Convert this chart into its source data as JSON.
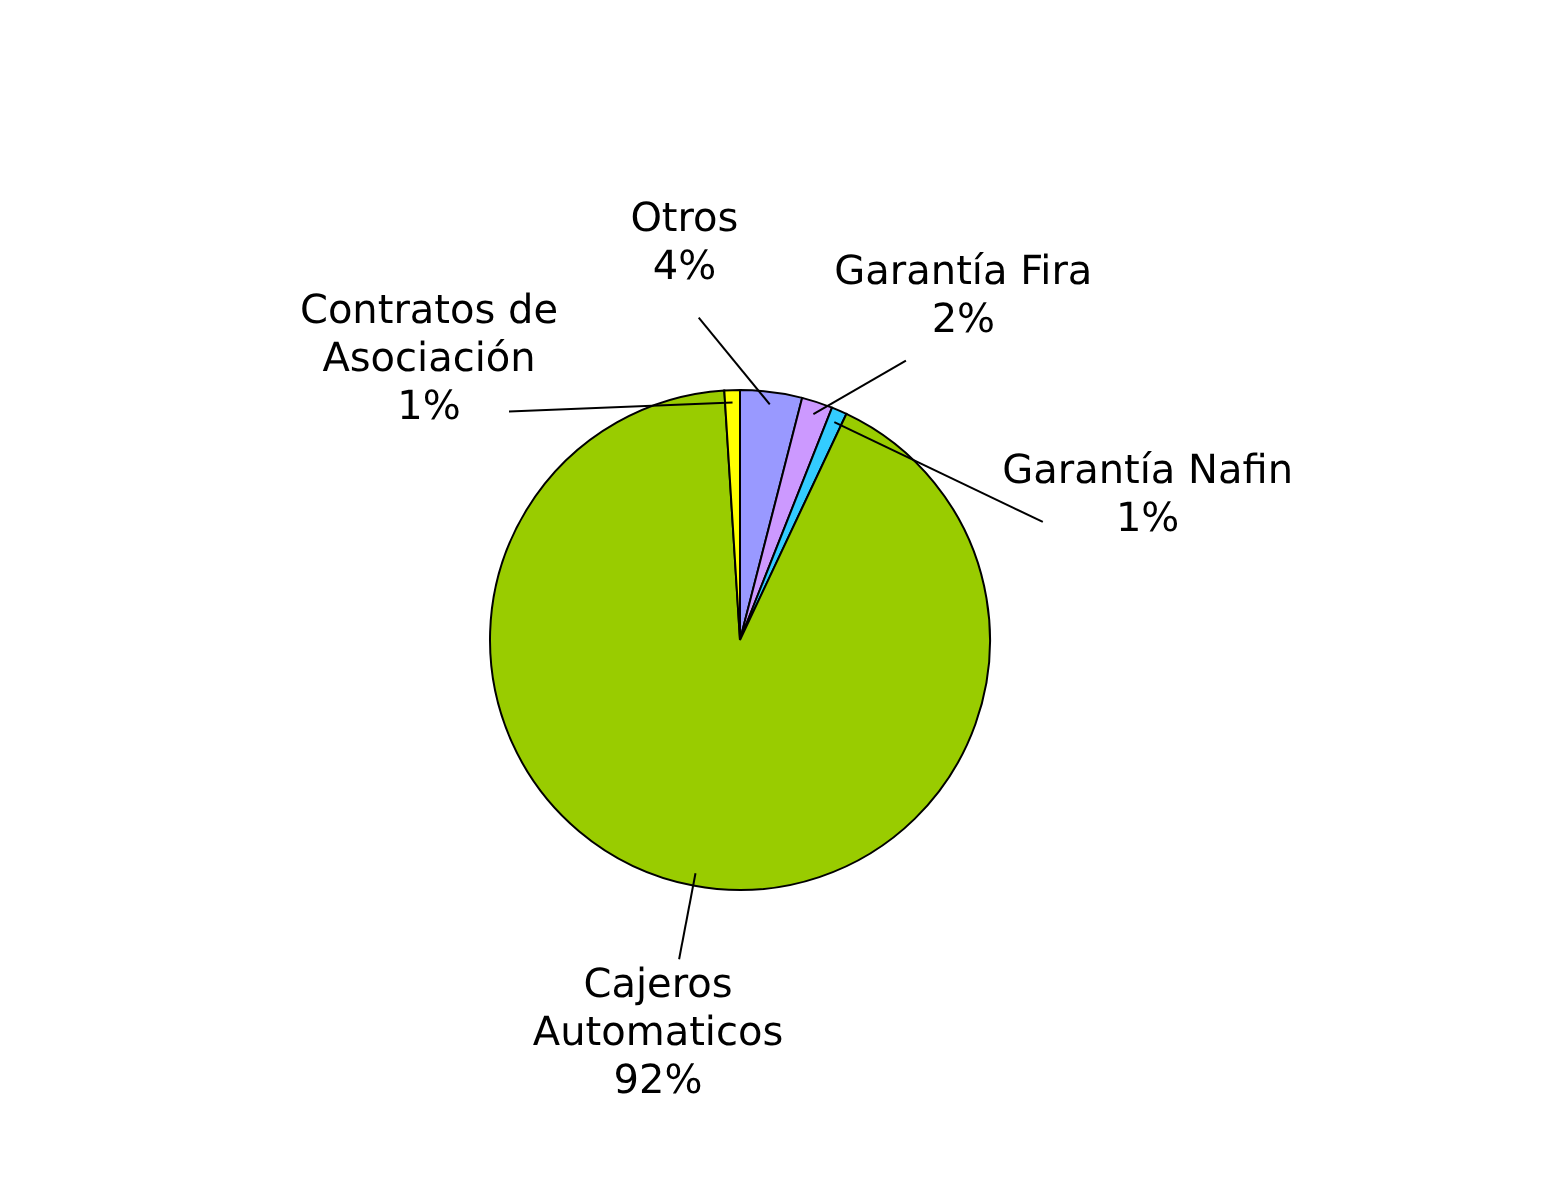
{
  "chart_data": {
    "type": "pie",
    "categories": [
      "Otros",
      "Garantía Fira",
      "Garantía Nafin",
      "Cajeros Automaticos",
      "Contratos de Asociación"
    ],
    "values": [
      4,
      2,
      1,
      92,
      1
    ],
    "colors": [
      "#9999ff",
      "#cc99ff",
      "#33ccff",
      "#99cc00",
      "#ffff00"
    ],
    "value_labels": [
      "4%",
      "2%",
      "1%",
      "92%",
      "1%"
    ]
  }
}
